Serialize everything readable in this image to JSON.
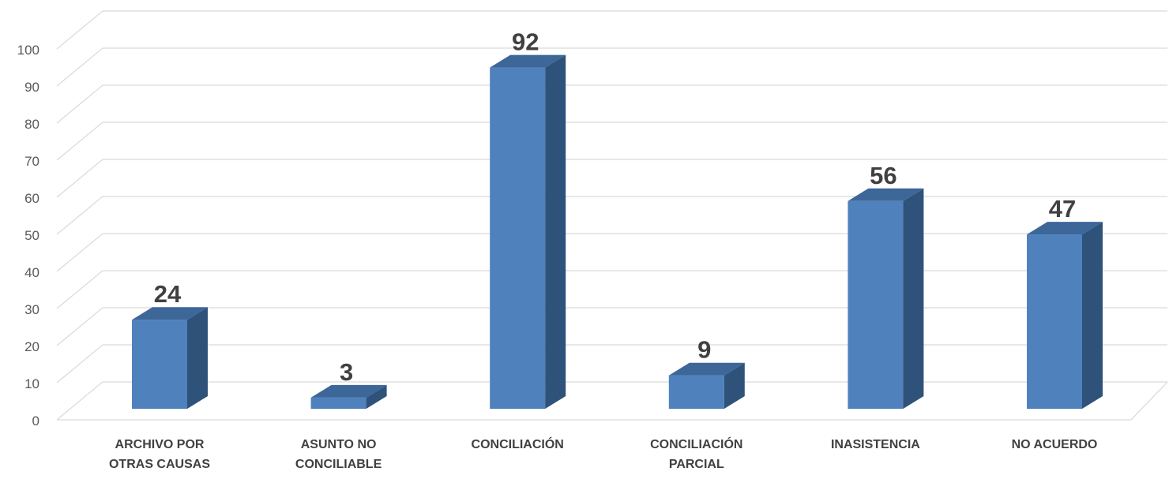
{
  "chart_data": {
    "type": "bar",
    "style": "3d-column",
    "title": "",
    "xlabel": "",
    "ylabel": "",
    "categories": [
      [
        "ARCHIVO POR",
        "OTRAS CAUSAS"
      ],
      [
        "ASUNTO NO",
        "CONCILIABLE"
      ],
      [
        "CONCILIACIÓN"
      ],
      [
        "CONCILIACIÓN",
        "PARCIAL"
      ],
      [
        "INASISTENCIA"
      ],
      [
        "NO ACUERDO"
      ]
    ],
    "values": [
      24,
      3,
      92,
      9,
      56,
      47
    ],
    "ylim": [
      0,
      100
    ],
    "yticks": [
      0,
      10,
      20,
      30,
      40,
      50,
      60,
      70,
      80,
      90,
      100
    ],
    "grid": true,
    "legend": "none",
    "colors": {
      "front": "#4F81BD",
      "side": "#2F527B",
      "top": "#3D6699",
      "grid": "#D9D9D9",
      "axis_text": "#595959",
      "data_label": "#404040",
      "category_text": "#404040"
    }
  }
}
